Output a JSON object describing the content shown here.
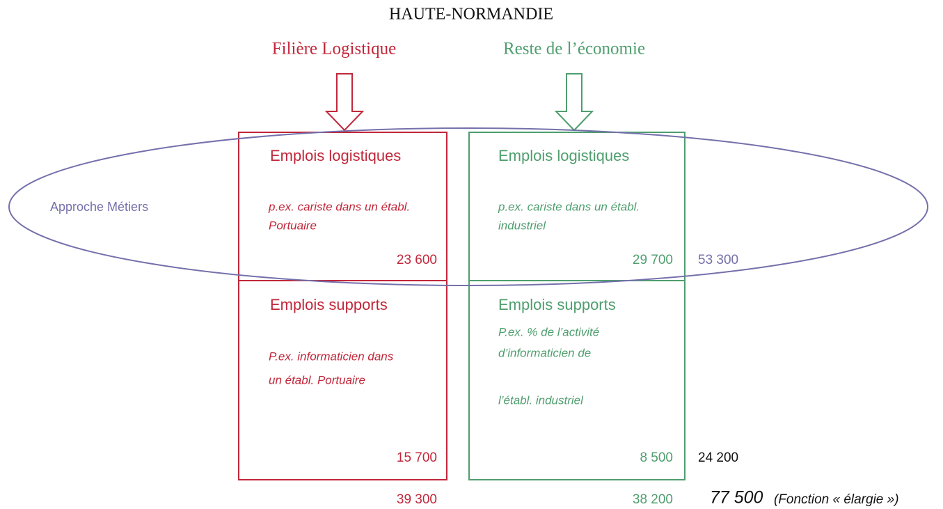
{
  "title": "HAUTE-NORMANDIE",
  "ellipse_label": "Approche Métiers",
  "columns": [
    {
      "name": "Filière Logistique",
      "cells": [
        {
          "heading": "Emplois logistiques",
          "description": [
            "p.ex. cariste dans un établ.",
            "Portuaire"
          ],
          "value": "23 600"
        },
        {
          "heading": "Emplois supports",
          "description": [
            "P.ex. informaticien dans",
            "un établ. Portuaire"
          ],
          "value": "15 700"
        }
      ],
      "total": "39 300"
    },
    {
      "name": "Reste de l’économie",
      "cells": [
        {
          "heading": "Emplois logistiques",
          "description": [
            "p.ex. cariste dans un établ.",
            "industriel"
          ],
          "value": "29 700"
        },
        {
          "heading": "Emplois supports",
          "description": [
            "P.ex. % de l’activité",
            "d’informaticien de",
            "l’établ. industriel"
          ],
          "value": "8 500"
        }
      ],
      "total": "38 200"
    }
  ],
  "row_totals": [
    "53 300",
    "24 200"
  ],
  "grand_total": "77 500",
  "grand_total_note": "(Fonction « élargie »)"
}
